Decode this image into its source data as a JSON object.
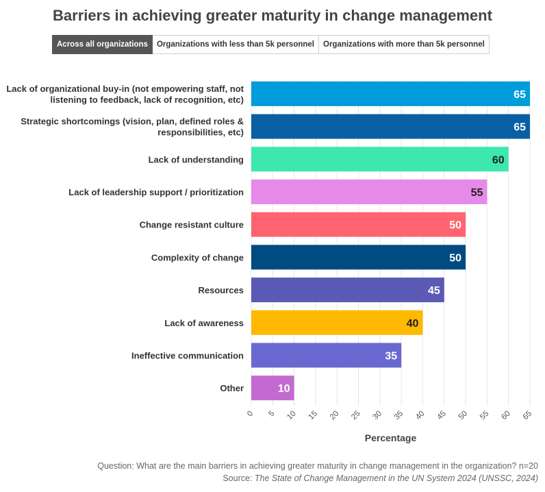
{
  "title": "Barriers in achieving greater maturity in change management",
  "tabs": [
    {
      "label": "Across all organizations",
      "active": true
    },
    {
      "label": "Organizations with less than 5k personnel",
      "active": false
    },
    {
      "label": "Organizations with more than 5k personnel",
      "active": false
    }
  ],
  "footnote": {
    "question": "Question: What are the main barriers in achieving greater maturity in change management in the organization? n=20",
    "source_prefix": "Source: ",
    "source_title": "The State of Change Management in the UN System 2024 (UNSSC, 2024)"
  },
  "chart_data": {
    "type": "bar",
    "orientation": "horizontal",
    "xlabel": "Percentage",
    "xlim": [
      0,
      65
    ],
    "xticks": [
      0,
      5,
      10,
      15,
      20,
      25,
      30,
      35,
      40,
      45,
      50,
      55,
      60,
      65
    ],
    "grid": true,
    "categories": [
      [
        "Lack of organizational buy-in (not empowering staff, not",
        "listening to feedback, lack of recognition, etc)"
      ],
      [
        "Strategic shortcomings (vision, plan, defined roles &",
        "responsibilities, etc)"
      ],
      [
        "Lack of understanding"
      ],
      [
        "Lack of leadership support / prioritization"
      ],
      [
        "Change resistant culture"
      ],
      [
        "Complexity of change"
      ],
      [
        "Resources"
      ],
      [
        "Lack of awareness"
      ],
      [
        "Ineffective communication"
      ],
      [
        "Other"
      ]
    ],
    "values": [
      65,
      65,
      60,
      55,
      50,
      50,
      45,
      40,
      35,
      10
    ],
    "colors": [
      "#009cdb",
      "#0a5fa3",
      "#3ce8b0",
      "#e58ae8",
      "#ff6470",
      "#004b82",
      "#5b5ab4",
      "#ffb900",
      "#6a69d0",
      "#c36ad0"
    ],
    "label_colors": [
      "#ffffff",
      "#ffffff",
      "#222222",
      "#222222",
      "#ffffff",
      "#ffffff",
      "#ffffff",
      "#222222",
      "#ffffff",
      "#ffffff"
    ]
  }
}
